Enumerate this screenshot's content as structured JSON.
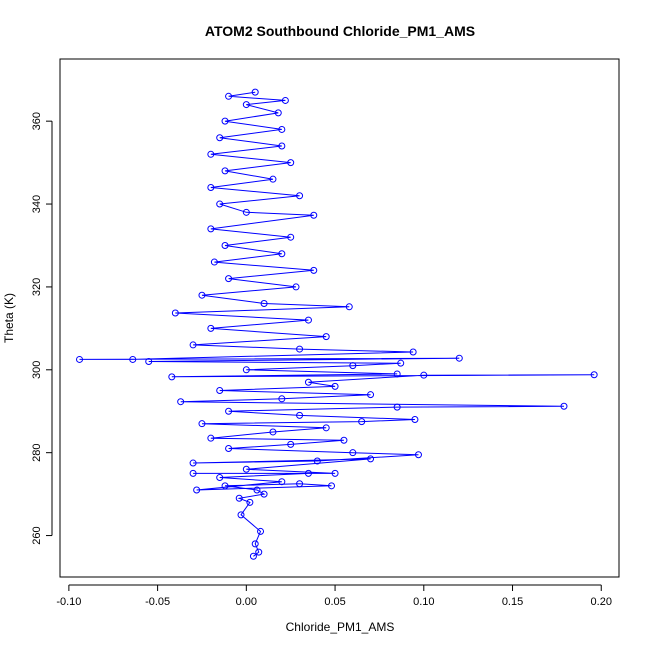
{
  "chart_data": {
    "type": "scatter",
    "title": "ATOM2 Southbound Chloride_PM1_AMS",
    "xlabel": "Chloride_PM1_AMS",
    "ylabel": "Theta (K)",
    "xlim": [
      -0.105,
      0.21
    ],
    "ylim": [
      250,
      375
    ],
    "xticks": [
      -0.1,
      -0.05,
      0.0,
      0.05,
      0.1,
      0.15,
      0.2
    ],
    "xtick_labels": [
      "-0.10",
      "-0.05",
      "0.00",
      "0.05",
      "0.10",
      "0.15",
      "0.20"
    ],
    "yticks": [
      260,
      280,
      300,
      320,
      340,
      360
    ],
    "ytick_labels": [
      "260",
      "280",
      "300",
      "320",
      "340",
      "360"
    ],
    "grid": false,
    "marker": "open-circle",
    "connected": true,
    "series_color": "#0000ff",
    "series": [
      {
        "points": [
          [
            0.004,
            255
          ],
          [
            0.007,
            256
          ],
          [
            0.005,
            258
          ],
          [
            0.008,
            261
          ],
          [
            -0.003,
            265
          ],
          [
            0.002,
            268
          ],
          [
            -0.004,
            269
          ],
          [
            0.01,
            270
          ],
          [
            0.006,
            271
          ],
          [
            -0.012,
            272
          ],
          [
            0.03,
            272.5
          ],
          [
            0.048,
            272
          ],
          [
            -0.028,
            271
          ],
          [
            0.02,
            273
          ],
          [
            -0.015,
            274
          ],
          [
            0.035,
            275
          ],
          [
            -0.03,
            275
          ],
          [
            0.05,
            275
          ],
          [
            0.0,
            276
          ],
          [
            0.07,
            278.5
          ],
          [
            -0.03,
            277.5
          ],
          [
            0.04,
            278
          ],
          [
            0.097,
            279.5
          ],
          [
            0.06,
            280
          ],
          [
            -0.01,
            281
          ],
          [
            0.025,
            282
          ],
          [
            0.055,
            283
          ],
          [
            -0.02,
            283.5
          ],
          [
            0.015,
            285
          ],
          [
            0.045,
            286
          ],
          [
            -0.025,
            287
          ],
          [
            0.065,
            287.5
          ],
          [
            0.095,
            288
          ],
          [
            0.03,
            289
          ],
          [
            -0.01,
            290
          ],
          [
            0.085,
            291
          ],
          [
            0.179,
            291.2
          ],
          [
            -0.037,
            292.3
          ],
          [
            0.02,
            293
          ],
          [
            0.07,
            294
          ],
          [
            -0.015,
            295
          ],
          [
            0.05,
            296
          ],
          [
            0.035,
            297
          ],
          [
            0.1,
            298.7
          ],
          [
            0.196,
            298.8
          ],
          [
            -0.042,
            298.3
          ],
          [
            0.085,
            299
          ],
          [
            0.0,
            300
          ],
          [
            0.06,
            301
          ],
          [
            0.087,
            301.6
          ],
          [
            -0.055,
            302
          ],
          [
            0.12,
            302.8
          ],
          [
            -0.094,
            302.5
          ],
          [
            -0.064,
            302.5
          ],
          [
            0.094,
            304.3
          ],
          [
            0.03,
            305
          ],
          [
            -0.03,
            306
          ],
          [
            0.045,
            308
          ],
          [
            -0.02,
            310
          ],
          [
            0.035,
            312
          ],
          [
            -0.04,
            313.7
          ],
          [
            0.058,
            315.2
          ],
          [
            0.01,
            316
          ],
          [
            -0.025,
            318
          ],
          [
            0.028,
            320
          ],
          [
            -0.01,
            322
          ],
          [
            0.038,
            324
          ],
          [
            -0.018,
            326
          ],
          [
            0.02,
            328
          ],
          [
            -0.012,
            330
          ],
          [
            0.025,
            332
          ],
          [
            -0.02,
            334
          ],
          [
            0.038,
            337.3
          ],
          [
            0.0,
            338
          ],
          [
            -0.015,
            340
          ],
          [
            0.03,
            342
          ],
          [
            -0.02,
            344
          ],
          [
            0.015,
            346
          ],
          [
            -0.012,
            348
          ],
          [
            0.025,
            350
          ],
          [
            -0.02,
            352
          ],
          [
            0.02,
            354
          ],
          [
            -0.015,
            356
          ],
          [
            0.02,
            358
          ],
          [
            -0.012,
            360
          ],
          [
            0.018,
            362
          ],
          [
            0.0,
            364
          ],
          [
            0.022,
            365
          ],
          [
            -0.01,
            366
          ],
          [
            0.005,
            367
          ]
        ]
      }
    ]
  }
}
